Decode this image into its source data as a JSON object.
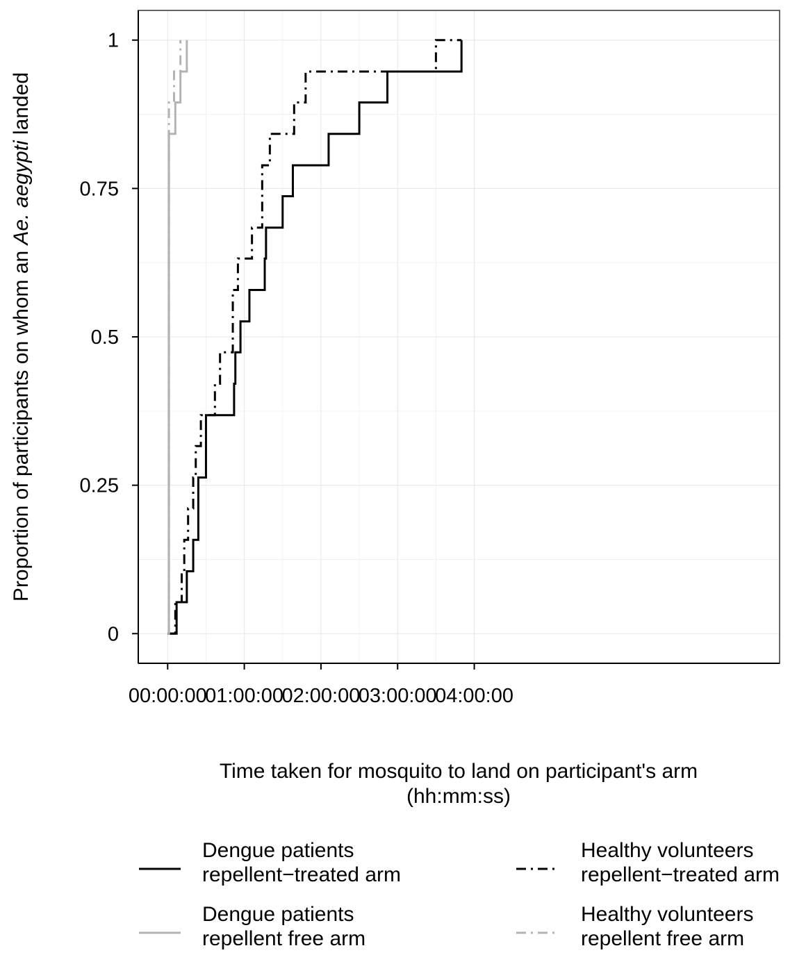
{
  "chart_data": {
    "type": "line",
    "step": true,
    "ylabel": {
      "before": "Proportion of participants on whom an ",
      "italic": "Ae. aegypti",
      "after": " landed"
    },
    "xlabel": {
      "line1": "Time taken for mosquito to land on participant's arm",
      "line2": "(hh:mm:ss)"
    },
    "xlim_minutes": [
      -23,
      479
    ],
    "ylim": [
      -0.05,
      1.05
    ],
    "x_ticks": [
      {
        "value": 0,
        "label": "00:00:00"
      },
      {
        "value": 60,
        "label": "01:00:00"
      },
      {
        "value": 120,
        "label": "02:00:00"
      },
      {
        "value": 180,
        "label": "03:00:00"
      },
      {
        "value": 240,
        "label": "04:00:00"
      }
    ],
    "y_ticks": [
      {
        "value": 0,
        "label": "0"
      },
      {
        "value": 0.25,
        "label": "0.25"
      },
      {
        "value": 0.5,
        "label": "0.5"
      },
      {
        "value": 0.75,
        "label": "0.75"
      },
      {
        "value": 1,
        "label": "1"
      }
    ],
    "grid": true,
    "legend_position": "bottom",
    "series": [
      {
        "name_line1": "Dengue patients",
        "name_line2": "repellent−treated arm",
        "color": "#000000",
        "dash": "solid",
        "x_minutes": [
          0,
          7,
          15,
          20,
          24,
          30,
          52,
          53,
          57,
          64,
          76,
          77,
          90,
          98,
          126,
          150,
          172,
          181,
          192,
          230
        ],
        "y": [
          0,
          0.053,
          0.105,
          0.158,
          0.263,
          0.368,
          0.421,
          0.474,
          0.526,
          0.579,
          0.632,
          0.684,
          0.737,
          0.789,
          0.842,
          0.895,
          0.947,
          0.947,
          0.947,
          1.0
        ]
      },
      {
        "name_line1": "Dengue patients",
        "name_line2": "repellent free arm",
        "color": "#b3b3b3",
        "dash": "solid",
        "x_minutes": [
          0,
          1,
          6,
          10,
          15
        ],
        "y": [
          0,
          0.842,
          0.895,
          0.947,
          1.0
        ]
      },
      {
        "name_line1": "Healthy volunteers",
        "name_line2": "repellent−treated arm",
        "color": "#000000",
        "dash": "dotdash",
        "x_minutes": [
          0,
          6,
          11,
          13,
          16,
          20,
          22,
          23,
          26,
          37,
          41,
          51,
          55,
          66,
          74,
          80,
          99,
          108,
          123,
          210,
          230
        ],
        "y": [
          0,
          0.053,
          0.105,
          0.158,
          0.211,
          0.263,
          0.316,
          0.316,
          0.368,
          0.421,
          0.474,
          0.579,
          0.632,
          0.684,
          0.789,
          0.842,
          0.895,
          0.947,
          0.947,
          1.0,
          1.0
        ]
      },
      {
        "name_line1": "Healthy volunteers",
        "name_line2": "repellent free arm",
        "color": "#b3b3b3",
        "dash": "dotdash",
        "x_minutes": [
          0,
          1,
          5,
          10
        ],
        "y": [
          0,
          0.895,
          0.947,
          1.0
        ]
      }
    ]
  }
}
